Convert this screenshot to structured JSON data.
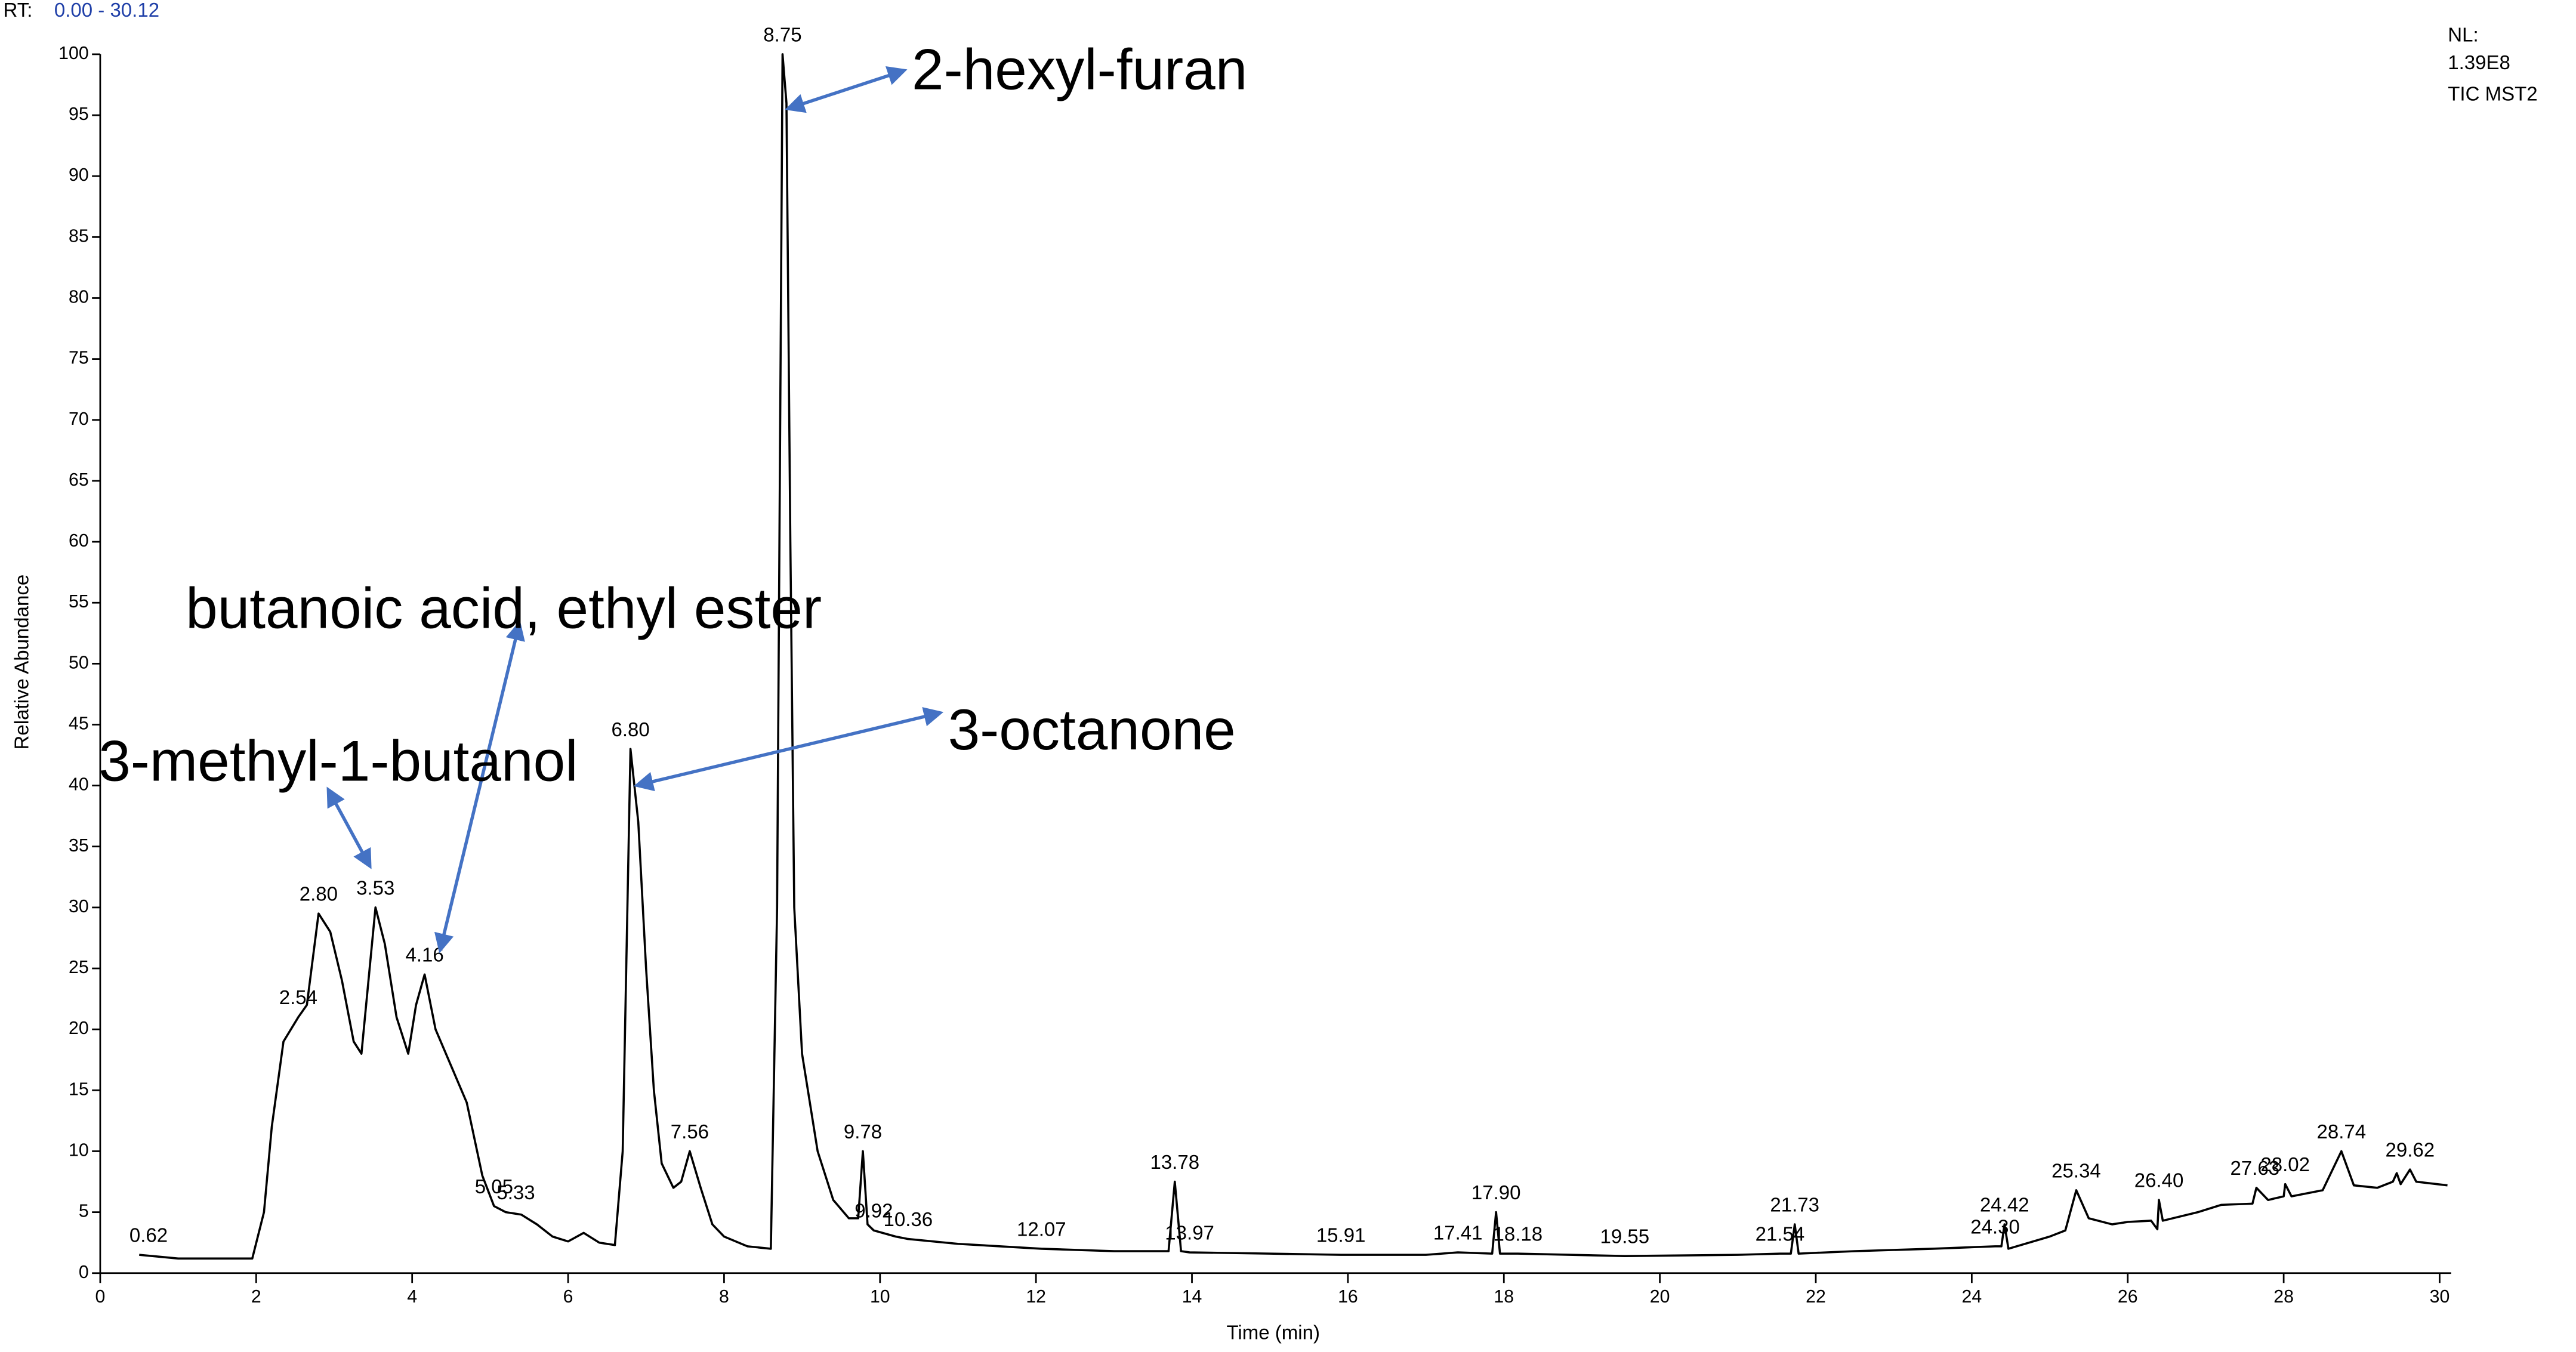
{
  "chart_data": {
    "type": "line",
    "rt_prefix": "RT:",
    "rt_range": "0.00 - 30.12",
    "nl_label": "NL:",
    "nl_value": "1.39E8",
    "scan_label": "TIC MST2",
    "x_label": "Time (min)",
    "y_label": "Relative Abundance",
    "xlim": [
      0,
      30.12
    ],
    "ylim": [
      0,
      100
    ],
    "xticks": [
      0,
      2,
      4,
      6,
      8,
      10,
      12,
      14,
      16,
      18,
      20,
      22,
      24,
      26,
      28,
      30
    ],
    "yticks": [
      0,
      5,
      10,
      15,
      20,
      25,
      30,
      35,
      40,
      45,
      50,
      55,
      60,
      65,
      70,
      75,
      80,
      85,
      90,
      95,
      100
    ],
    "series": [
      {
        "color": "#000000",
        "x": [
          0.5,
          1.0,
          1.5,
          1.95,
          2.1,
          2.2,
          2.35,
          2.54,
          2.65,
          2.8,
          2.95,
          3.1,
          3.25,
          3.35,
          3.53,
          3.65,
          3.8,
          3.95,
          4.05,
          4.16,
          4.3,
          4.5,
          4.7,
          4.9,
          5.05,
          5.2,
          5.4,
          5.6,
          5.8,
          6.0,
          6.2,
          6.4,
          6.6,
          6.7,
          6.8,
          6.9,
          7.0,
          7.1,
          7.2,
          7.35,
          7.45,
          7.56,
          7.7,
          7.85,
          8.0,
          8.3,
          8.6,
          8.68,
          8.75,
          8.8,
          8.85,
          8.9,
          9.0,
          9.2,
          9.4,
          9.6,
          9.72,
          9.78,
          9.84,
          9.92,
          10.2,
          10.36,
          11.0,
          12.07,
          13.0,
          13.7,
          13.78,
          13.86,
          13.97,
          15.0,
          15.91,
          17.0,
          17.41,
          17.85,
          17.9,
          17.95,
          18.18,
          19.55,
          21.0,
          21.54,
          21.68,
          21.73,
          21.78,
          22.5,
          23.5,
          24.3,
          24.38,
          24.42,
          24.47,
          25.0,
          25.2,
          25.34,
          25.5,
          25.8,
          26.0,
          26.3,
          26.38,
          26.4,
          26.45,
          26.9,
          27.2,
          27.6,
          27.65,
          27.8,
          28.0,
          28.02,
          28.1,
          28.5,
          28.74,
          28.9,
          29.2,
          29.4,
          29.45,
          29.5,
          29.62,
          29.7,
          30.1
        ],
        "values": [
          1.5,
          1.2,
          1.2,
          1.2,
          5,
          12,
          19,
          21,
          22,
          29.5,
          28,
          24,
          19,
          18,
          30,
          27,
          21,
          18,
          22,
          24.5,
          20,
          17,
          14,
          8,
          5.5,
          5,
          4.8,
          4,
          3,
          2.6,
          3.3,
          2.5,
          2.3,
          10,
          43,
          37,
          25,
          15,
          9,
          7,
          7.5,
          10,
          7,
          4,
          3,
          2.2,
          2,
          30,
          100,
          96,
          60,
          30,
          18,
          10,
          6,
          4.5,
          4.5,
          10,
          4,
          3.5,
          3,
          2.8,
          2.4,
          2,
          1.8,
          1.8,
          7.5,
          1.8,
          1.7,
          1.6,
          1.5,
          1.5,
          1.7,
          1.6,
          5,
          1.6,
          1.6,
          1.4,
          1.5,
          1.6,
          1.6,
          4,
          1.6,
          1.8,
          2,
          2.2,
          2.2,
          4,
          2,
          3,
          3.5,
          6.8,
          4.5,
          4,
          4.2,
          4.3,
          3.6,
          6,
          4.3,
          5,
          5.6,
          5.7,
          7,
          6,
          6.3,
          7.3,
          6.3,
          6.8,
          10,
          7.2,
          7,
          7.5,
          8.2,
          7.3,
          8.5,
          7.5,
          7.2
        ]
      }
    ],
    "peaks": {
      "rt": [
        0.62,
        2.54,
        2.8,
        3.53,
        4.16,
        5.05,
        5.33,
        6.8,
        7.56,
        8.75,
        9.78,
        9.92,
        10.36,
        12.07,
        13.78,
        13.97,
        15.91,
        17.41,
        17.9,
        18.18,
        19.55,
        21.54,
        21.73,
        24.3,
        24.42,
        25.34,
        26.4,
        27.63,
        28.02,
        28.74,
        29.62
      ],
      "rt_labels": [
        "0.62",
        "2.54",
        "2.80",
        "3.53",
        "4.16",
        "5.05",
        "5.33",
        "6.80",
        "7.56",
        "8.75",
        "9.78",
        "9.92",
        "10.36",
        "12.07",
        "13.78",
        "13.97",
        "15.91",
        "17.41",
        "17.90",
        "18.18",
        "19.55",
        "21.54",
        "21.73",
        "24.30",
        "24.42",
        "25.34",
        "26.40",
        "27.63",
        "28.02",
        "28.74",
        "29.62"
      ],
      "abundance": [
        1.5,
        21,
        29.5,
        30,
        24.5,
        5.5,
        5,
        43,
        10,
        100,
        10,
        3.5,
        2.8,
        2,
        7.5,
        1.7,
        1.5,
        1.7,
        5,
        1.6,
        1.4,
        1.6,
        4,
        2.2,
        4,
        6.8,
        6,
        7,
        7.3,
        10,
        8.5
      ]
    },
    "annotations": [
      "2-hexyl-furan",
      "butanoic acid, ethyl ester",
      "3-octanone",
      "3-methyl-1-butanol"
    ]
  }
}
